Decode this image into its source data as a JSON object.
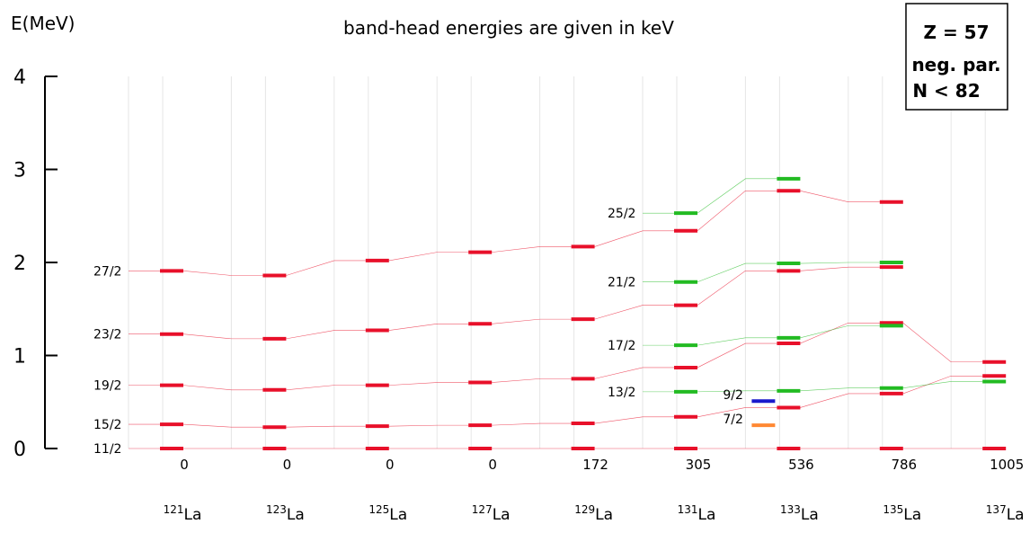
{
  "chart_data": {
    "type": "level-scheme",
    "title": "band-head energies are given in keV",
    "ylabel": "E(MeV)",
    "ylim": [
      0,
      4
    ],
    "yticks": [
      "0",
      "1",
      "2",
      "3",
      "4"
    ],
    "legend_box": [
      "Z = 57",
      "neg. par.",
      "N < 82"
    ],
    "nuclei": [
      {
        "mass": "121",
        "element": "La",
        "bandhead": "0"
      },
      {
        "mass": "123",
        "element": "La",
        "bandhead": "0"
      },
      {
        "mass": "125",
        "element": "La",
        "bandhead": "0"
      },
      {
        "mass": "127",
        "element": "La",
        "bandhead": "0"
      },
      {
        "mass": "129",
        "element": "La",
        "bandhead": "172"
      },
      {
        "mass": "131",
        "element": "La",
        "bandhead": "305"
      },
      {
        "mass": "133",
        "element": "La",
        "bandhead": "536"
      },
      {
        "mass": "135",
        "element": "La",
        "bandhead": "786"
      },
      {
        "mass": "137",
        "element": "La",
        "bandhead": "1005"
      }
    ],
    "series": [
      {
        "name": "11/2",
        "color": "#e8102a",
        "values": [
          0.0,
          0.0,
          0.0,
          0.0,
          0.0,
          0.0,
          0.0,
          0.0,
          0.0
        ]
      },
      {
        "name": "15/2",
        "color": "#e8102a",
        "values": [
          0.26,
          0.23,
          0.24,
          0.25,
          0.27,
          0.34,
          0.44,
          0.59,
          0.78
        ]
      },
      {
        "name": "19/2",
        "color": "#e8102a",
        "values": [
          0.68,
          0.63,
          0.68,
          0.71,
          0.75,
          0.87,
          1.13,
          1.35,
          0.93
        ]
      },
      {
        "name": "23/2",
        "color": "#e8102a",
        "values": [
          1.23,
          1.18,
          1.27,
          1.34,
          1.39,
          1.54,
          1.91,
          1.95,
          null
        ]
      },
      {
        "name": "27/2",
        "color": "#e8102a",
        "values": [
          1.91,
          1.86,
          2.02,
          2.11,
          2.17,
          2.34,
          2.77,
          2.65,
          null
        ]
      },
      {
        "name": "13/2",
        "color": "#22bb22",
        "values": [
          null,
          null,
          null,
          null,
          null,
          0.61,
          0.62,
          0.65,
          0.72
        ]
      },
      {
        "name": "17/2",
        "color": "#22bb22",
        "values": [
          null,
          null,
          null,
          null,
          null,
          1.11,
          1.19,
          1.32,
          null
        ]
      },
      {
        "name": "21/2",
        "color": "#22bb22",
        "values": [
          null,
          null,
          null,
          null,
          null,
          1.79,
          1.99,
          2.0,
          null
        ]
      },
      {
        "name": "25/2",
        "color": "#22bb22",
        "values": [
          null,
          null,
          null,
          null,
          null,
          2.53,
          2.9,
          null,
          null
        ]
      }
    ],
    "extra_levels": [
      {
        "name": "9/2",
        "color": "#1a1acc",
        "nucleus": 6,
        "value": 0.51
      },
      {
        "name": "7/2",
        "color": "#ff8833",
        "nucleus": 6,
        "value": 0.25
      }
    ]
  }
}
